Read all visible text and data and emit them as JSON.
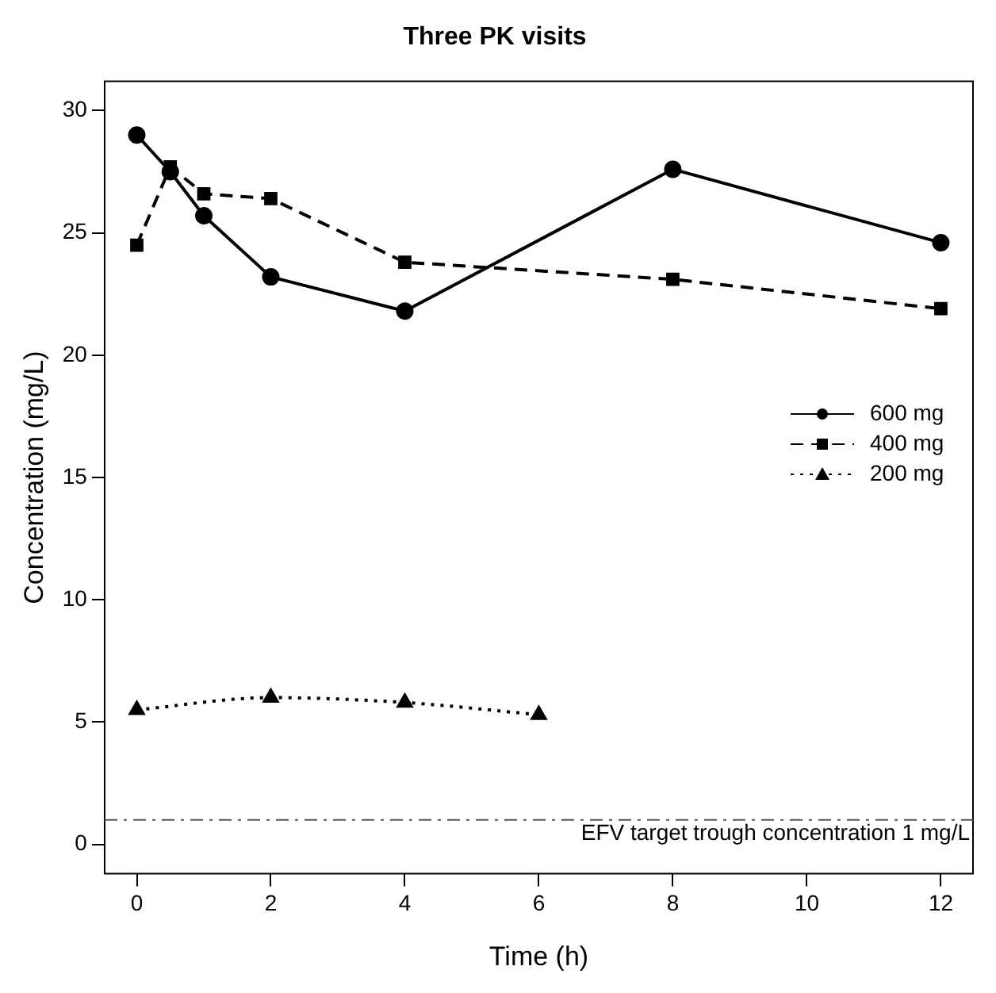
{
  "chart_data": {
    "type": "line",
    "title": "Three PK visits",
    "xlabel": "Time (h)",
    "ylabel": "Concentration (mg/L)",
    "xlim": [
      -0.48,
      12.48
    ],
    "xticks": [
      0,
      2,
      4,
      6,
      8,
      10,
      12
    ],
    "ylim": [
      -1.2,
      31.2
    ],
    "yticks": [
      0,
      5,
      10,
      15,
      20,
      25,
      30
    ],
    "grid": false,
    "legend": "right",
    "series": [
      {
        "name": "600 mg",
        "color": "#000000",
        "line_style": "solid",
        "marker": "circle",
        "x": [
          0,
          0.5,
          1,
          2,
          4,
          8,
          12
        ],
        "values": [
          29.0,
          27.5,
          25.7,
          23.2,
          21.8,
          27.6,
          24.6
        ]
      },
      {
        "name": "400 mg",
        "color": "#000000",
        "line_style": "dashed",
        "marker": "square",
        "x": [
          0,
          0.5,
          1,
          2,
          4,
          8,
          12
        ],
        "values": [
          24.5,
          27.7,
          26.6,
          26.4,
          23.8,
          23.1,
          21.9
        ]
      },
      {
        "name": "200 mg",
        "color": "#000000",
        "line_style": "dotted",
        "marker": "triangle",
        "x": [
          0,
          2,
          4,
          6
        ],
        "values": [
          5.5,
          6.0,
          5.8,
          5.3
        ]
      }
    ],
    "ref_lines": [
      {
        "axis": "y",
        "value": 1,
        "label": "EFV target trough concentration 1 mg/L",
        "color": "#555555",
        "line_style": "dashdot"
      }
    ]
  }
}
